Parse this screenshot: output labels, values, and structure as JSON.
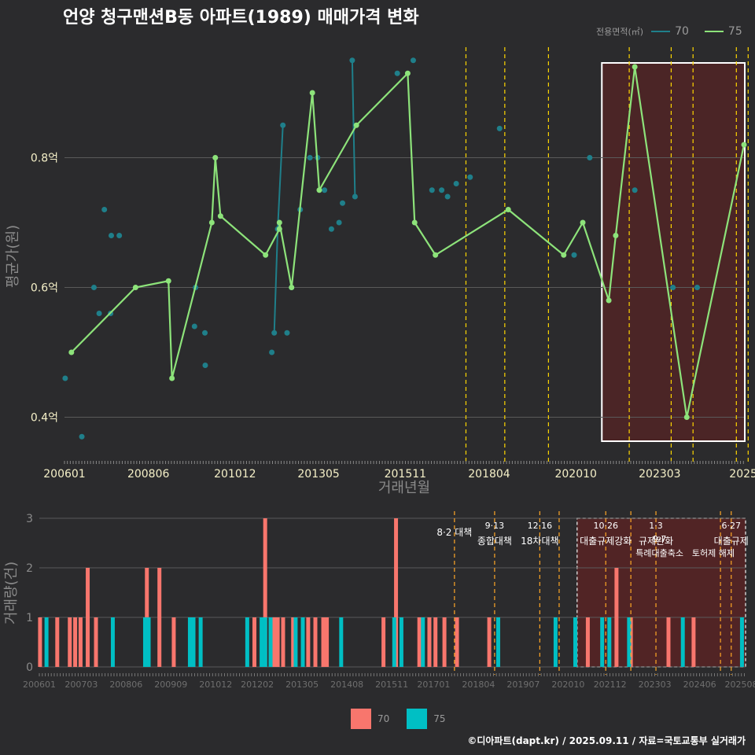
{
  "title": "언양 청구맨션B동 아파트(1989) 매매가격 변화",
  "footer": "©디아파트(dapt.kr) / 2025.09.11 / 자료=국토교통부 실거래가",
  "colors": {
    "background": "#2b2b2d",
    "series_70_line": "#1f7f8a",
    "series_75_line": "#8de37a",
    "bar_70": "#f8766d",
    "bar_75": "#00bfc4",
    "policy_line": "#ffd600",
    "highlight_fill": "#6b1f1f",
    "grid": "#5a5a5a",
    "tick_text": "#f5f0c8",
    "axis_title": "#8a8a8a"
  },
  "legend_top": {
    "title": "전용면적(㎡)",
    "items": [
      {
        "label": "70",
        "color": "#1f7f8a"
      },
      {
        "label": "75",
        "color": "#8de37a"
      }
    ]
  },
  "legend_bottom": {
    "items": [
      {
        "label": "70",
        "color": "#f8766d"
      },
      {
        "label": "75",
        "color": "#00bfc4"
      }
    ]
  },
  "chart_data": [
    {
      "type": "line",
      "title": "언양 청구맨션B동 아파트(1989) 매매가격 변화",
      "xlabel": "거래년월",
      "ylabel": "평균가(원)",
      "xlim": [
        2006.0,
        2025.6
      ],
      "ylim": [
        0.34,
        0.98
      ],
      "y_ticks": [
        {
          "v": 0.4,
          "label": "0.4억"
        },
        {
          "v": 0.6,
          "label": "0.6억"
        },
        {
          "v": 0.8,
          "label": "0.8억"
        }
      ],
      "x_ticks": [
        {
          "v": 2006.0,
          "label": "200601"
        },
        {
          "v": 2008.42,
          "label": "200806"
        },
        {
          "v": 2010.92,
          "label": "201012"
        },
        {
          "v": 2013.33,
          "label": "201305"
        },
        {
          "v": 2015.83,
          "label": "201511"
        },
        {
          "v": 2018.25,
          "label": "201804"
        },
        {
          "v": 2020.75,
          "label": "202010"
        },
        {
          "v": 2023.17,
          "label": "202303"
        },
        {
          "v": 2025.58,
          "label": "2025"
        }
      ],
      "highlight_range": [
        2021.5,
        2026.5
      ],
      "policy_lines": [
        2017.58,
        2018.7,
        2019.96,
        2022.29,
        2023.5,
        2024.13,
        2025.38,
        2025.72
      ],
      "series": [
        {
          "name": "70",
          "points": [
            {
              "x": 2006.02,
              "y": 0.46
            },
            {
              "x": 2006.5,
              "y": 0.37
            },
            {
              "x": 2006.85,
              "y": 0.6
            },
            {
              "x": 2007.0,
              "y": 0.56
            },
            {
              "x": 2007.15,
              "y": 0.72
            },
            {
              "x": 2007.33,
              "y": 0.56
            },
            {
              "x": 2007.35,
              "y": 0.68
            },
            {
              "x": 2007.58,
              "y": 0.68
            },
            {
              "x": 2009.75,
              "y": 0.54
            },
            {
              "x": 2009.78,
              "y": 0.6
            },
            {
              "x": 2010.05,
              "y": 0.53
            },
            {
              "x": 2010.06,
              "y": 0.48
            },
            {
              "x": 2011.98,
              "y": 0.5
            },
            {
              "x": 2012.05,
              "y": 0.53
            },
            {
              "x": 2012.15,
              "y": 0.69
            },
            {
              "x": 2012.3,
              "y": 0.85
            },
            {
              "x": 2012.42,
              "y": 0.53
            },
            {
              "x": 2012.55,
              "y": 0.6
            },
            {
              "x": 2012.8,
              "y": 0.72
            },
            {
              "x": 2013.08,
              "y": 0.8
            },
            {
              "x": 2013.3,
              "y": 0.8
            },
            {
              "x": 2013.5,
              "y": 0.75
            },
            {
              "x": 2013.7,
              "y": 0.69
            },
            {
              "x": 2013.92,
              "y": 0.7
            },
            {
              "x": 2014.02,
              "y": 0.73
            },
            {
              "x": 2014.3,
              "y": 0.95
            },
            {
              "x": 2014.38,
              "y": 0.74
            },
            {
              "x": 2015.6,
              "y": 0.93
            },
            {
              "x": 2016.06,
              "y": 0.95
            },
            {
              "x": 2016.6,
              "y": 0.75
            },
            {
              "x": 2016.88,
              "y": 0.75
            },
            {
              "x": 2017.05,
              "y": 0.74
            },
            {
              "x": 2017.3,
              "y": 0.76
            },
            {
              "x": 2017.7,
              "y": 0.77
            },
            {
              "x": 2018.55,
              "y": 0.845
            },
            {
              "x": 2020.7,
              "y": 0.65
            },
            {
              "x": 2021.15,
              "y": 0.8
            },
            {
              "x": 2022.45,
              "y": 0.75
            },
            {
              "x": 2023.55,
              "y": 0.6
            },
            {
              "x": 2024.25,
              "y": 0.6
            }
          ],
          "connected_segments": [
            [
              2012.0,
              2012.4
            ],
            [
              2014.3,
              2014.4
            ]
          ]
        },
        {
          "name": "75",
          "points": [
            {
              "x": 2006.2,
              "y": 0.5
            },
            {
              "x": 2008.05,
              "y": 0.6
            },
            {
              "x": 2009.0,
              "y": 0.61
            },
            {
              "x": 2009.1,
              "y": 0.46
            },
            {
              "x": 2010.25,
              "y": 0.7
            },
            {
              "x": 2010.35,
              "y": 0.8
            },
            {
              "x": 2010.5,
              "y": 0.71
            },
            {
              "x": 2011.8,
              "y": 0.65
            },
            {
              "x": 2012.2,
              "y": 0.69
            },
            {
              "x": 2012.2,
              "y": 0.7
            },
            {
              "x": 2012.55,
              "y": 0.6
            },
            {
              "x": 2013.15,
              "y": 0.9
            },
            {
              "x": 2013.35,
              "y": 0.75
            },
            {
              "x": 2014.42,
              "y": 0.85
            },
            {
              "x": 2015.9,
              "y": 0.93
            },
            {
              "x": 2016.1,
              "y": 0.7
            },
            {
              "x": 2016.7,
              "y": 0.65
            },
            {
              "x": 2018.8,
              "y": 0.72
            },
            {
              "x": 2020.4,
              "y": 0.65
            },
            {
              "x": 2020.95,
              "y": 0.7
            },
            {
              "x": 2021.7,
              "y": 0.58
            },
            {
              "x": 2021.9,
              "y": 0.68
            },
            {
              "x": 2022.45,
              "y": 0.94
            },
            {
              "x": 2023.95,
              "y": 0.4
            },
            {
              "x": 2025.6,
              "y": 0.82
            }
          ]
        }
      ]
    },
    {
      "type": "bar",
      "xlabel": "",
      "ylabel": "거래량(건)",
      "xlim": [
        2006.0,
        2025.7
      ],
      "ylim": [
        0,
        3
      ],
      "y_ticks": [
        0,
        1,
        2,
        3
      ],
      "x_ticks": [
        {
          "v": 2006.0,
          "label": "200601"
        },
        {
          "v": 2007.17,
          "label": "200703"
        },
        {
          "v": 2008.42,
          "label": "200806"
        },
        {
          "v": 2009.67,
          "label": "200909"
        },
        {
          "v": 2010.92,
          "label": "201012"
        },
        {
          "v": 2012.08,
          "label": "201202"
        },
        {
          "v": 2013.33,
          "label": "201305"
        },
        {
          "v": 2014.58,
          "label": "201408"
        },
        {
          "v": 2015.83,
          "label": "201511"
        },
        {
          "v": 2017.0,
          "label": "201701"
        },
        {
          "v": 2018.25,
          "label": "201804"
        },
        {
          "v": 2019.5,
          "label": "201907"
        },
        {
          "v": 2020.75,
          "label": "202010"
        },
        {
          "v": 2021.92,
          "label": "202112"
        },
        {
          "v": 2023.17,
          "label": "202303"
        },
        {
          "v": 2024.42,
          "label": "202406"
        },
        {
          "v": 2025.58,
          "label": "202508"
        }
      ],
      "highlight_range": [
        2021.0,
        2025.7
      ],
      "policy_lines": [
        2017.58,
        2018.7,
        2019.96,
        2020.5,
        2021.8,
        2022.5,
        2023.2,
        2025.0,
        2025.3
      ],
      "annotations": [
        {
          "x": 2017.58,
          "row": 1,
          "text": "8·2 대책"
        },
        {
          "x": 2018.7,
          "row": 0,
          "text": "9·13"
        },
        {
          "x": 2018.7,
          "row": 2,
          "text": "종합대책"
        },
        {
          "x": 2019.96,
          "row": 0,
          "text": "12·16"
        },
        {
          "x": 2019.96,
          "row": 2,
          "text": "18차대책"
        },
        {
          "x": 2021.8,
          "row": 0,
          "text": "10·26"
        },
        {
          "x": 2021.8,
          "row": 2,
          "text": "대출규제강화"
        },
        {
          "x": 2023.2,
          "row": 0,
          "text": "1·3"
        },
        {
          "x": 2023.2,
          "row": 2,
          "text": "규제완화"
        },
        {
          "x": 2023.3,
          "row": 3,
          "text": "9·7"
        },
        {
          "x": 2023.3,
          "row": 4,
          "text": "특례대출축소"
        },
        {
          "x": 2025.3,
          "row": 0,
          "text": "6·27"
        },
        {
          "x": 2025.3,
          "row": 2,
          "text": "대출규제"
        },
        {
          "x": 2024.8,
          "row": 4,
          "text": "토허제 해제"
        }
      ],
      "series": [
        {
          "name": "70",
          "bars": [
            {
              "x": 2006.02,
              "v": 1
            },
            {
              "x": 2006.5,
              "v": 1
            },
            {
              "x": 2006.85,
              "v": 1
            },
            {
              "x": 2007.0,
              "v": 1
            },
            {
              "x": 2007.15,
              "v": 1
            },
            {
              "x": 2007.35,
              "v": 2
            },
            {
              "x": 2007.58,
              "v": 1
            },
            {
              "x": 2009.0,
              "v": 2
            },
            {
              "x": 2009.35,
              "v": 2
            },
            {
              "x": 2009.75,
              "v": 1
            },
            {
              "x": 2012.0,
              "v": 1
            },
            {
              "x": 2012.3,
              "v": 3
            },
            {
              "x": 2012.55,
              "v": 1
            },
            {
              "x": 2012.65,
              "v": 1
            },
            {
              "x": 2012.8,
              "v": 1
            },
            {
              "x": 2013.08,
              "v": 1
            },
            {
              "x": 2013.5,
              "v": 1
            },
            {
              "x": 2013.7,
              "v": 1
            },
            {
              "x": 2013.92,
              "v": 1
            },
            {
              "x": 2014.02,
              "v": 1
            },
            {
              "x": 2015.6,
              "v": 1
            },
            {
              "x": 2015.95,
              "v": 3
            },
            {
              "x": 2016.6,
              "v": 1
            },
            {
              "x": 2016.88,
              "v": 1
            },
            {
              "x": 2017.05,
              "v": 1
            },
            {
              "x": 2017.3,
              "v": 1
            },
            {
              "x": 2017.65,
              "v": 1
            },
            {
              "x": 2018.55,
              "v": 1
            },
            {
              "x": 2021.3,
              "v": 1
            },
            {
              "x": 2022.1,
              "v": 2
            },
            {
              "x": 2022.5,
              "v": 1
            },
            {
              "x": 2023.55,
              "v": 1
            },
            {
              "x": 2024.25,
              "v": 1
            }
          ]
        },
        {
          "name": "75",
          "bars": [
            {
              "x": 2006.2,
              "v": 1
            },
            {
              "x": 2008.05,
              "v": 1
            },
            {
              "x": 2008.95,
              "v": 1
            },
            {
              "x": 2009.05,
              "v": 1
            },
            {
              "x": 2010.2,
              "v": 1
            },
            {
              "x": 2010.3,
              "v": 1
            },
            {
              "x": 2010.5,
              "v": 1
            },
            {
              "x": 2011.8,
              "v": 1
            },
            {
              "x": 2012.2,
              "v": 1
            },
            {
              "x": 2012.3,
              "v": 1
            },
            {
              "x": 2012.45,
              "v": 1
            },
            {
              "x": 2013.15,
              "v": 1
            },
            {
              "x": 2013.35,
              "v": 1
            },
            {
              "x": 2014.42,
              "v": 1
            },
            {
              "x": 2015.9,
              "v": 1
            },
            {
              "x": 2016.1,
              "v": 1
            },
            {
              "x": 2016.7,
              "v": 1
            },
            {
              "x": 2018.8,
              "v": 1
            },
            {
              "x": 2020.4,
              "v": 1
            },
            {
              "x": 2020.95,
              "v": 1
            },
            {
              "x": 2021.7,
              "v": 1
            },
            {
              "x": 2021.9,
              "v": 1
            },
            {
              "x": 2022.45,
              "v": 1
            },
            {
              "x": 2023.95,
              "v": 1
            },
            {
              "x": 2025.6,
              "v": 1
            }
          ]
        }
      ]
    }
  ]
}
